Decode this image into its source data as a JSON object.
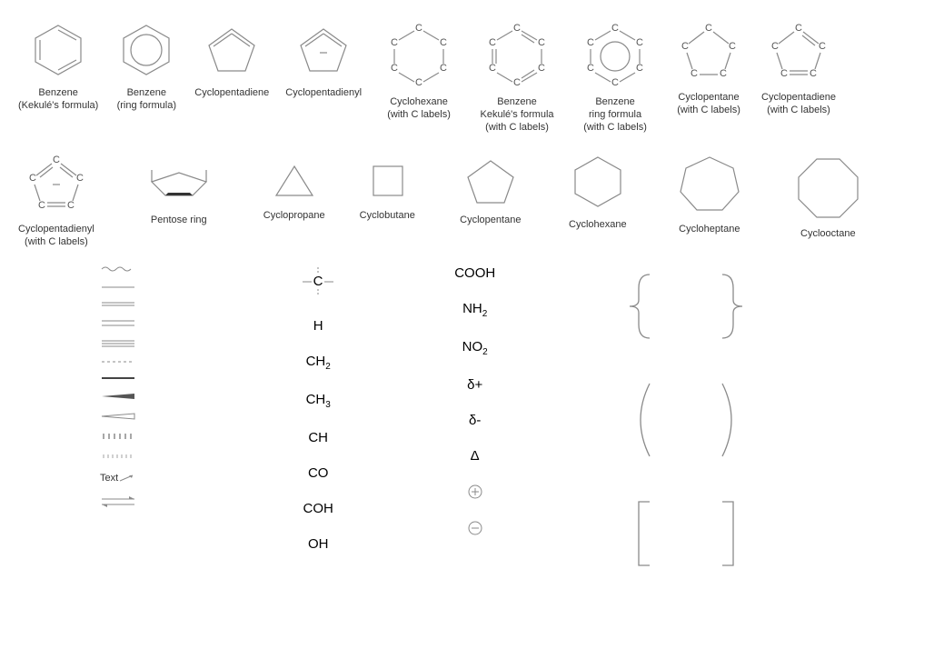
{
  "stroke": "#8a8a8a",
  "text_color": "#333333",
  "row1": [
    {
      "key": "benzene_kekule",
      "label": "Benzene\n(Kekulé's formula)"
    },
    {
      "key": "benzene_ring",
      "label": "Benzene\n(ring formula)"
    },
    {
      "key": "cyclopentadiene",
      "label": "Cyclopentadiene"
    },
    {
      "key": "cyclopentadienyl",
      "label": "Cyclopentadienyl"
    },
    {
      "key": "cyclohexane_c",
      "label": "Cyclohexane\n(with C labels)"
    },
    {
      "key": "benzene_kekule_c",
      "label": "Benzene\nKekulé's formula\n(with C labels)"
    },
    {
      "key": "benzene_ring_c",
      "label": "Benzene\nring formula\n(with C labels)"
    },
    {
      "key": "cyclopentane_c",
      "label": "Cyclopentane\n(with C labels)"
    },
    {
      "key": "cyclopentadiene_c",
      "label": "Cyclopentadiene\n(with C labels)"
    }
  ],
  "row2": [
    {
      "key": "cyclopentadienyl_c",
      "label": "Cyclopentadienyl\n(with C labels)"
    },
    {
      "key": "pentose_ring",
      "label": "Pentose ring"
    },
    {
      "key": "cyclopropane",
      "label": "Cyclopropane"
    },
    {
      "key": "cyclobutane",
      "label": "Cyclobutane"
    },
    {
      "key": "cyclopentane",
      "label": "Cyclopentane"
    },
    {
      "key": "cyclohexane",
      "label": "Cyclohexane"
    },
    {
      "key": "cycloheptane",
      "label": "Cycloheptane"
    },
    {
      "key": "cyclooctane",
      "label": "Cyclooctane"
    }
  ],
  "bonds": [
    {
      "key": "wavy",
      "type": "wavy"
    },
    {
      "key": "single",
      "type": "line",
      "lines": 1
    },
    {
      "key": "double_close",
      "type": "line",
      "lines": 2,
      "gap": 2
    },
    {
      "key": "double",
      "type": "line",
      "lines": 2,
      "gap": 3
    },
    {
      "key": "triple",
      "type": "line",
      "lines": 3,
      "gap": 2
    },
    {
      "key": "dashed",
      "type": "dashed"
    },
    {
      "key": "thick",
      "type": "thick"
    },
    {
      "key": "wedge_solid",
      "type": "wedge_solid"
    },
    {
      "key": "wedge_hollow",
      "type": "wedge_hollow"
    },
    {
      "key": "hash_bold",
      "type": "hash",
      "weight": 1.5
    },
    {
      "key": "hash_light",
      "type": "hash",
      "weight": 0.8
    }
  ],
  "text_item": "Text",
  "formulas_col1": [
    {
      "key": "c_center",
      "html": "C",
      "type": "center_c"
    },
    {
      "key": "h",
      "html": "H"
    },
    {
      "key": "ch2",
      "html": "CH<sub>2</sub>"
    },
    {
      "key": "ch3",
      "html": "CH<sub>3</sub>"
    },
    {
      "key": "ch",
      "html": "CH"
    },
    {
      "key": "co",
      "html": "CO"
    },
    {
      "key": "coh",
      "html": "COH"
    },
    {
      "key": "oh",
      "html": "OH"
    }
  ],
  "formulas_col2": [
    {
      "key": "cooh",
      "html": "COOH"
    },
    {
      "key": "nh2",
      "html": "NH<sub>2</sub>"
    },
    {
      "key": "no2",
      "html": "NO<sub>2</sub>"
    },
    {
      "key": "delta_plus",
      "html": "δ+"
    },
    {
      "key": "delta_minus",
      "html": "δ-"
    },
    {
      "key": "delta",
      "html": "Δ"
    },
    {
      "key": "circle_plus",
      "type": "circle_plus"
    },
    {
      "key": "circle_minus",
      "type": "circle_minus"
    }
  ],
  "brackets": [
    {
      "key": "curly",
      "type": "curly"
    },
    {
      "key": "round",
      "type": "round"
    },
    {
      "key": "square",
      "type": "square"
    }
  ]
}
